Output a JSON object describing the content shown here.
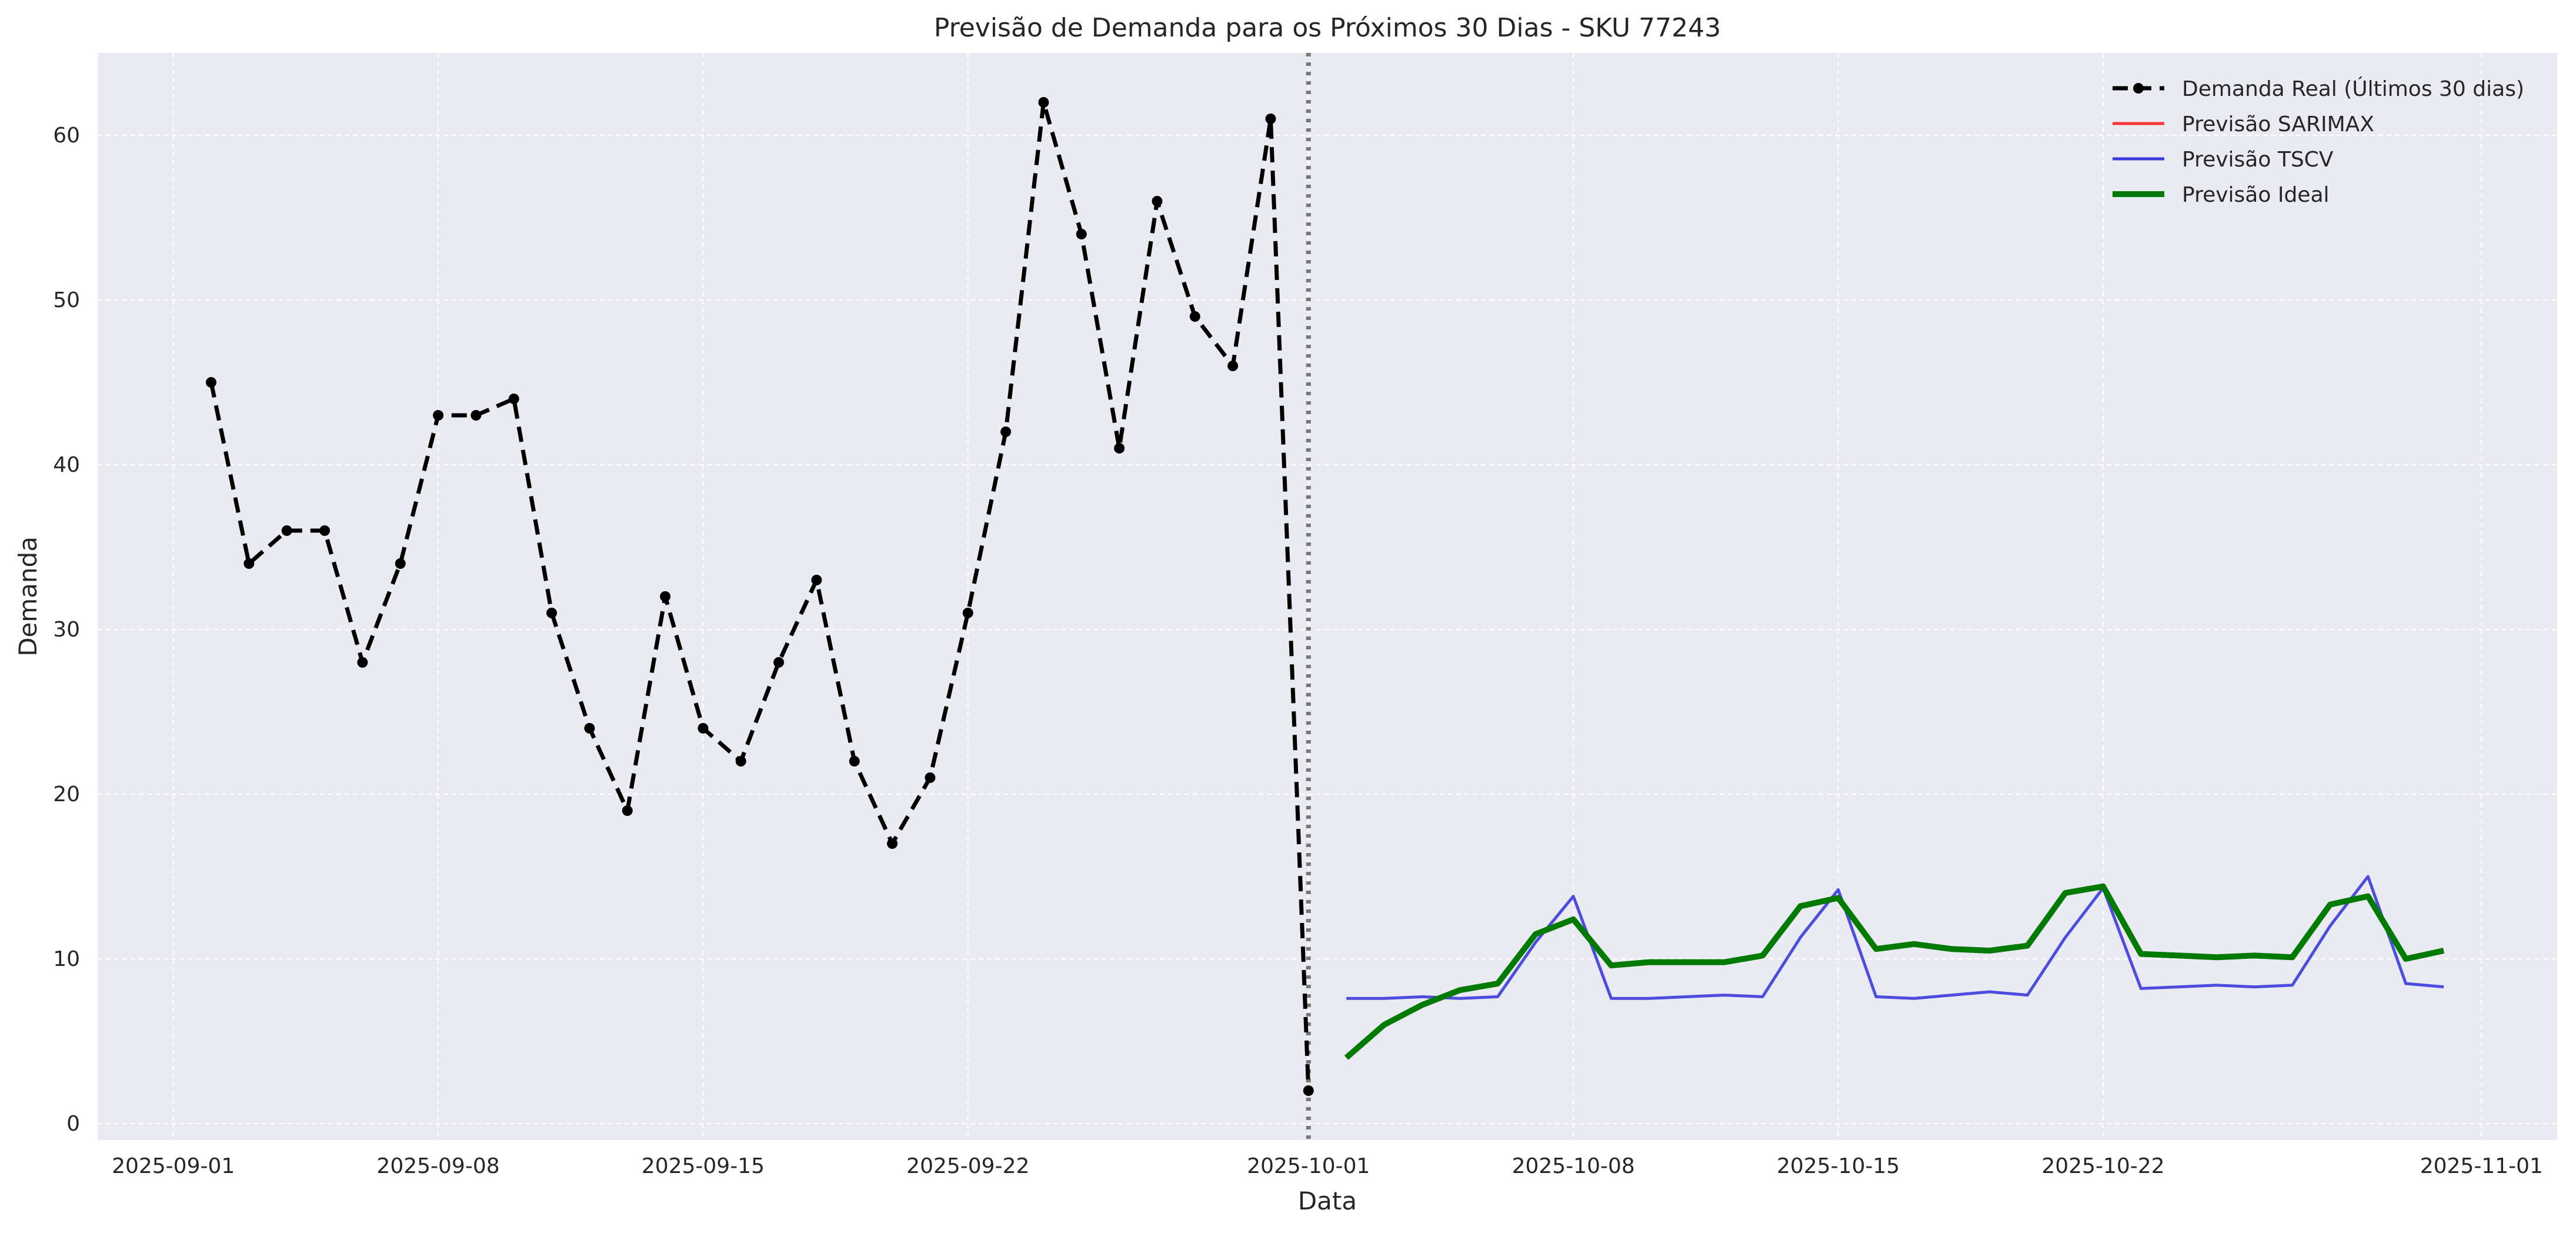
{
  "chart_data": {
    "type": "line",
    "title": "Previsão de Demanda para os Próximos 30 Dias - SKU 77243",
    "xlabel": "Data",
    "ylabel": "Demanda",
    "xlim": [
      "2025-08-30",
      "2025-11-03"
    ],
    "ylim": [
      -1,
      65
    ],
    "x_ticks": [
      "2025-09-01",
      "2025-09-08",
      "2025-09-15",
      "2025-09-22",
      "2025-10-01",
      "2025-10-08",
      "2025-10-15",
      "2025-10-22",
      "2025-11-01"
    ],
    "y_ticks": [
      0,
      10,
      20,
      30,
      40,
      50,
      60
    ],
    "grid": true,
    "legend_position": "top-right",
    "cutoff_date": "2025-10-01",
    "colors": {
      "background": "#eaeaf2",
      "actual": "#000000",
      "sarimax": "#ff3333",
      "tscv": "#3b3bdd",
      "ideal": "#007a00",
      "cutoff": "#777777"
    },
    "series": [
      {
        "name": "Demanda Real (Últimos 30 dias)",
        "style": "dashed-markers",
        "color": "#000000",
        "x": [
          "2025-09-02",
          "2025-09-03",
          "2025-09-04",
          "2025-09-05",
          "2025-09-06",
          "2025-09-07",
          "2025-09-08",
          "2025-09-09",
          "2025-09-10",
          "2025-09-11",
          "2025-09-12",
          "2025-09-13",
          "2025-09-14",
          "2025-09-15",
          "2025-09-16",
          "2025-09-17",
          "2025-09-18",
          "2025-09-19",
          "2025-09-20",
          "2025-09-21",
          "2025-09-22",
          "2025-09-23",
          "2025-09-24",
          "2025-09-25",
          "2025-09-26",
          "2025-09-27",
          "2025-09-28",
          "2025-09-29",
          "2025-09-30",
          "2025-10-01"
        ],
        "values": [
          45,
          34,
          36,
          36,
          28,
          34,
          43,
          43,
          44,
          31,
          24,
          19,
          32,
          24,
          22,
          28,
          33,
          22,
          17,
          21,
          31,
          42,
          62,
          54,
          41,
          56,
          49,
          46,
          61,
          2
        ]
      },
      {
        "name": "Previsão SARIMAX",
        "style": "solid",
        "color": "#ff3333",
        "x": [],
        "values": []
      },
      {
        "name": "Previsão TSCV",
        "style": "solid",
        "color": "#3b3bdd",
        "x": [
          "2025-10-02",
          "2025-10-03",
          "2025-10-04",
          "2025-10-05",
          "2025-10-06",
          "2025-10-07",
          "2025-10-08",
          "2025-10-09",
          "2025-10-10",
          "2025-10-11",
          "2025-10-12",
          "2025-10-13",
          "2025-10-14",
          "2025-10-15",
          "2025-10-16",
          "2025-10-17",
          "2025-10-18",
          "2025-10-19",
          "2025-10-20",
          "2025-10-21",
          "2025-10-22",
          "2025-10-23",
          "2025-10-24",
          "2025-10-25",
          "2025-10-26",
          "2025-10-27",
          "2025-10-28",
          "2025-10-29",
          "2025-10-30",
          "2025-10-31"
        ],
        "values": [
          7.6,
          7.6,
          7.7,
          7.6,
          7.7,
          11.0,
          13.8,
          7.6,
          7.6,
          7.7,
          7.8,
          7.7,
          11.3,
          14.2,
          7.7,
          7.6,
          7.8,
          8.0,
          7.8,
          11.3,
          14.3,
          8.2,
          8.3,
          8.4,
          8.3,
          8.4,
          12.0,
          15.0,
          8.5,
          8.3
        ]
      },
      {
        "name": "Previsão Ideal",
        "style": "solid-thick",
        "color": "#007a00",
        "x": [
          "2025-10-02",
          "2025-10-03",
          "2025-10-04",
          "2025-10-05",
          "2025-10-06",
          "2025-10-07",
          "2025-10-08",
          "2025-10-09",
          "2025-10-10",
          "2025-10-11",
          "2025-10-12",
          "2025-10-13",
          "2025-10-14",
          "2025-10-15",
          "2025-10-16",
          "2025-10-17",
          "2025-10-18",
          "2025-10-19",
          "2025-10-20",
          "2025-10-21",
          "2025-10-22",
          "2025-10-23",
          "2025-10-24",
          "2025-10-25",
          "2025-10-26",
          "2025-10-27",
          "2025-10-28",
          "2025-10-29",
          "2025-10-30",
          "2025-10-31"
        ],
        "values": [
          4.0,
          6.0,
          7.2,
          8.1,
          8.5,
          11.5,
          12.4,
          9.6,
          9.8,
          9.8,
          9.8,
          10.2,
          13.2,
          13.7,
          10.6,
          10.9,
          10.6,
          10.5,
          10.8,
          14.0,
          14.4,
          10.3,
          10.2,
          10.1,
          10.2,
          10.1,
          13.3,
          13.8,
          10.0,
          10.5
        ]
      }
    ]
  }
}
